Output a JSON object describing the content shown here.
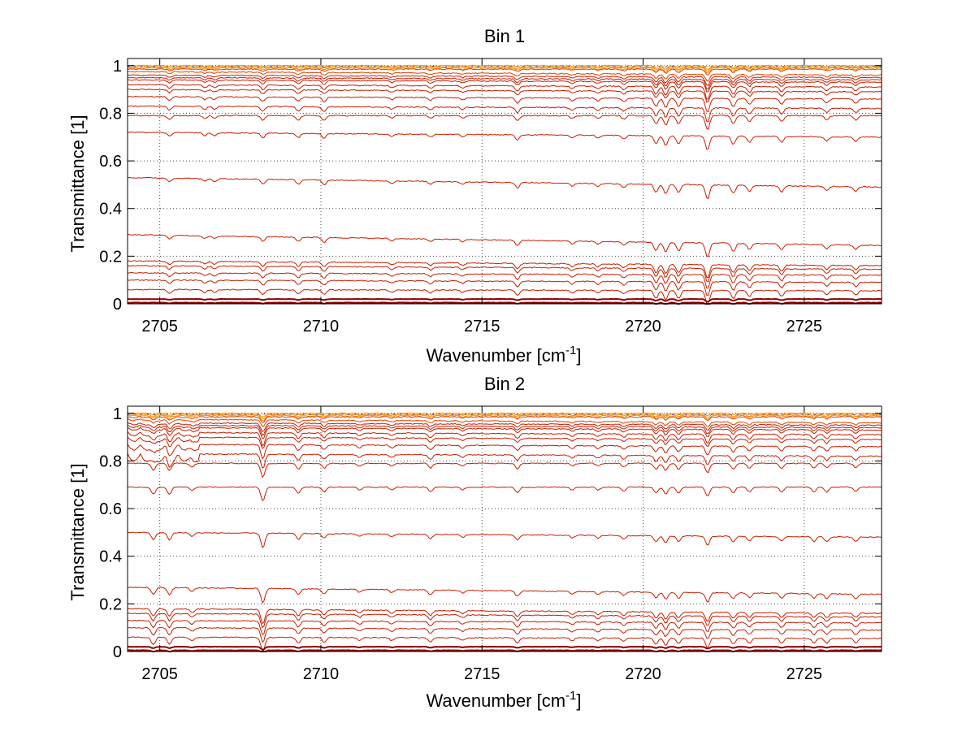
{
  "figure": {
    "background": "#ffffff"
  },
  "chart_data": [
    {
      "type": "line",
      "title": "Bin 1",
      "xlabel": "Wavenumber [cm",
      "xlabel_sup": "-1",
      "xlabel_close": "]",
      "ylabel": "Transmittance [1]",
      "xlim": [
        2704.0,
        2727.4
      ],
      "ylim": [
        0,
        1.03
      ],
      "x_ticks": [
        2705,
        2710,
        2715,
        2720,
        2725
      ],
      "x_tick_labels": [
        "2705",
        "2710",
        "2715",
        "2720",
        "2725"
      ],
      "y_ticks": [
        0,
        0.2,
        0.4,
        0.6,
        0.8,
        1
      ],
      "y_tick_labels": [
        "0",
        "0.2",
        "0.4",
        "0.6",
        "0.8",
        "1"
      ],
      "grid": true,
      "grid_style": "dotted",
      "series_description": "many transmittance spectra at different optical depths",
      "series_baselines_start": [
        1.0,
        0.995,
        0.99,
        0.985,
        0.975,
        0.96,
        0.95,
        0.94,
        0.92,
        0.9,
        0.87,
        0.83,
        0.79,
        0.72,
        0.53,
        0.29,
        0.18,
        0.16,
        0.13,
        0.1,
        0.06,
        0.02,
        0.005
      ],
      "series_baselines_end": [
        1.0,
        0.995,
        0.99,
        0.985,
        0.96,
        0.95,
        0.94,
        0.93,
        0.91,
        0.89,
        0.86,
        0.82,
        0.79,
        0.7,
        0.49,
        0.245,
        0.16,
        0.145,
        0.12,
        0.09,
        0.055,
        0.02,
        0.005
      ],
      "absorption_lines_cm-1": [
        2705.3,
        2706.4,
        2706.7,
        2708.2,
        2709.3,
        2710.1,
        2712.2,
        2713.4,
        2714.4,
        2716.1,
        2717.8,
        2718.6,
        2719.4,
        2720.4,
        2720.7,
        2721.1,
        2722.0,
        2722.8,
        2723.3,
        2724.3,
        2725.7,
        2726.6
      ],
      "absorption_depths": [
        0.015,
        0.012,
        0.012,
        0.02,
        0.018,
        0.02,
        0.01,
        0.012,
        0.01,
        0.022,
        0.012,
        0.012,
        0.015,
        0.035,
        0.04,
        0.035,
        0.06,
        0.035,
        0.025,
        0.025,
        0.018,
        0.018
      ],
      "colors": {
        "dark": "#8b0000",
        "mid": "#c81e00",
        "light": "#ff8c00",
        "yellow": "#e6c800",
        "blue": "#1e3cc8"
      }
    },
    {
      "type": "line",
      "title": "Bin 2",
      "xlabel": "Wavenumber [cm",
      "xlabel_sup": "-1",
      "xlabel_close": "]",
      "ylabel": "Transmittance [1]",
      "xlim": [
        2704.0,
        2727.4
      ],
      "ylim": [
        0,
        1.03
      ],
      "x_ticks": [
        2705,
        2710,
        2715,
        2720,
        2725
      ],
      "x_tick_labels": [
        "2705",
        "2710",
        "2715",
        "2720",
        "2725"
      ],
      "y_ticks": [
        0,
        0.2,
        0.4,
        0.6,
        0.8,
        1
      ],
      "y_tick_labels": [
        "0",
        "0.2",
        "0.4",
        "0.6",
        "0.8",
        "1"
      ],
      "grid": true,
      "grid_style": "dotted",
      "series_description": "many transmittance spectra at different optical depths",
      "series_baselines_start": [
        1.0,
        0.995,
        0.99,
        0.985,
        0.975,
        0.96,
        0.95,
        0.94,
        0.92,
        0.9,
        0.87,
        0.83,
        0.79,
        0.69,
        0.5,
        0.27,
        0.18,
        0.16,
        0.13,
        0.1,
        0.06,
        0.02,
        0.005
      ],
      "series_baselines_end": [
        1.0,
        0.995,
        0.99,
        0.985,
        0.96,
        0.95,
        0.94,
        0.93,
        0.91,
        0.89,
        0.86,
        0.82,
        0.79,
        0.69,
        0.48,
        0.24,
        0.16,
        0.145,
        0.12,
        0.09,
        0.055,
        0.02,
        0.005
      ],
      "absorption_lines_cm-1": [
        2704.8,
        2705.3,
        2706.0,
        2708.2,
        2709.3,
        2710.1,
        2711.2,
        2712.2,
        2713.4,
        2714.4,
        2716.1,
        2717.8,
        2718.6,
        2719.4,
        2720.4,
        2720.7,
        2721.1,
        2722.0,
        2722.8,
        2723.3,
        2724.3,
        2725.3,
        2725.7,
        2726.6
      ],
      "absorption_depths": [
        0.03,
        0.03,
        0.015,
        0.06,
        0.025,
        0.02,
        0.012,
        0.012,
        0.02,
        0.012,
        0.022,
        0.012,
        0.012,
        0.015,
        0.025,
        0.03,
        0.025,
        0.04,
        0.025,
        0.02,
        0.02,
        0.02,
        0.02,
        0.018
      ],
      "colors": {
        "dark": "#8b0000",
        "mid": "#c81e00",
        "light": "#ff8c00",
        "yellow": "#e6c800",
        "blue": "#1e3cc8"
      }
    }
  ]
}
